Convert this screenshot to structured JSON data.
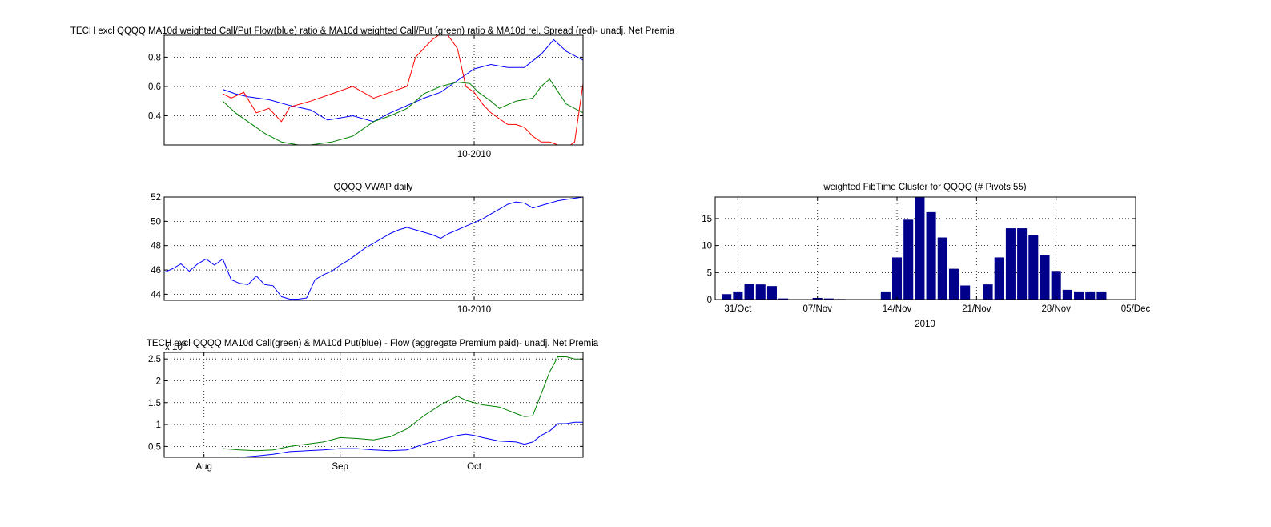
{
  "colors": {
    "blue": "#0000ff",
    "green": "#008000",
    "red": "#ff0000",
    "navy": "#00008b"
  },
  "chart_data": [
    {
      "id": "ratio",
      "type": "line",
      "title": "TECH excl QQQQ MA10d weighted Call/Put Flow(blue) ratio & MA10d weighted Call/Put (green) ratio & MA10d rel. Spread (red)- unadj. Net Premia",
      "ylim": [
        0.2,
        0.95
      ],
      "yticks": [
        {
          "v": 0.4,
          "label": "0.4"
        },
        {
          "v": 0.6,
          "label": "0.6"
        },
        {
          "v": 0.8,
          "label": "0.8"
        }
      ],
      "xlim": [
        0,
        100
      ],
      "xticks": [
        {
          "v": 74,
          "label": "10-2010"
        }
      ],
      "series": [
        {
          "key": "blue",
          "x": [
            14,
            17,
            20,
            25,
            30,
            35,
            39,
            45,
            50,
            54,
            58,
            62,
            66,
            70,
            74,
            78,
            82,
            86,
            90,
            93,
            96,
            100
          ],
          "y": [
            0.58,
            0.55,
            0.53,
            0.51,
            0.47,
            0.44,
            0.37,
            0.4,
            0.36,
            0.42,
            0.47,
            0.52,
            0.56,
            0.64,
            0.72,
            0.75,
            0.73,
            0.73,
            0.82,
            0.92,
            0.84,
            0.78
          ]
        },
        {
          "key": "green",
          "x": [
            14,
            17,
            20,
            24,
            28,
            32,
            35,
            40,
            45,
            50,
            54,
            58,
            62,
            66,
            70,
            73,
            75,
            78,
            80,
            84,
            88,
            90,
            92,
            96,
            100
          ],
          "y": [
            0.5,
            0.42,
            0.36,
            0.28,
            0.22,
            0.2,
            0.2,
            0.22,
            0.26,
            0.36,
            0.4,
            0.45,
            0.55,
            0.6,
            0.63,
            0.62,
            0.56,
            0.5,
            0.45,
            0.5,
            0.52,
            0.6,
            0.65,
            0.48,
            0.42
          ]
        },
        {
          "key": "red",
          "x": [
            14,
            16,
            19,
            22,
            25,
            28,
            30,
            35,
            40,
            45,
            50,
            54,
            58,
            60,
            64,
            67,
            70,
            72,
            74,
            76,
            78,
            80,
            82,
            84,
            86,
            88,
            90,
            92,
            94,
            96,
            98,
            100
          ],
          "y": [
            0.55,
            0.52,
            0.56,
            0.42,
            0.45,
            0.36,
            0.46,
            0.5,
            0.55,
            0.6,
            0.52,
            0.56,
            0.6,
            0.8,
            0.92,
            0.98,
            0.86,
            0.6,
            0.56,
            0.48,
            0.42,
            0.38,
            0.34,
            0.34,
            0.32,
            0.26,
            0.22,
            0.22,
            0.2,
            0.18,
            0.22,
            0.62
          ]
        }
      ]
    },
    {
      "id": "vwap",
      "type": "line",
      "title": "QQQQ VWAP daily",
      "ylim": [
        43.5,
        52
      ],
      "yticks": [
        {
          "v": 44,
          "label": "44"
        },
        {
          "v": 46,
          "label": "46"
        },
        {
          "v": 48,
          "label": "48"
        },
        {
          "v": 50,
          "label": "50"
        },
        {
          "v": 52,
          "label": "52"
        }
      ],
      "xlim": [
        0,
        100
      ],
      "xticks": [
        {
          "v": 74,
          "label": "10-2010"
        }
      ],
      "series": [
        {
          "key": "blue",
          "x": [
            0,
            2,
            4,
            6,
            8,
            10,
            12,
            14,
            16,
            18,
            20,
            22,
            24,
            26,
            28,
            30,
            32,
            34,
            36,
            38,
            40,
            42,
            44,
            46,
            48,
            50,
            52,
            54,
            56,
            58,
            60,
            62,
            64,
            66,
            68,
            70,
            72,
            74,
            76,
            78,
            80,
            82,
            84,
            86,
            88,
            90,
            92,
            94,
            96,
            98,
            100
          ],
          "y": [
            45.8,
            46.1,
            46.5,
            45.9,
            46.5,
            46.9,
            46.4,
            46.9,
            45.2,
            44.9,
            44.8,
            45.5,
            44.8,
            44.7,
            43.8,
            43.6,
            43.6,
            43.7,
            45.2,
            45.6,
            45.9,
            46.4,
            46.8,
            47.3,
            47.8,
            48.2,
            48.6,
            49.0,
            49.3,
            49.5,
            49.3,
            49.1,
            48.9,
            48.6,
            49.0,
            49.3,
            49.6,
            49.9,
            50.2,
            50.6,
            51.0,
            51.4,
            51.6,
            51.5,
            51.1,
            51.3,
            51.5,
            51.7,
            51.8,
            51.9,
            52.0
          ]
        }
      ]
    },
    {
      "id": "flow",
      "type": "line",
      "title": "TECH excl QQQQ MA10d Call(green) & MA10d Put(blue) - Flow (aggregate Premium paid)- unadj. Net Premia",
      "exponent_label": "x 10",
      "exponent_power": "6",
      "ylim": [
        0.25,
        2.65
      ],
      "yticks": [
        {
          "v": 0.5,
          "label": "0.5"
        },
        {
          "v": 1,
          "label": "1"
        },
        {
          "v": 1.5,
          "label": "1.5"
        },
        {
          "v": 2,
          "label": "2"
        },
        {
          "v": 2.5,
          "label": "2.5"
        }
      ],
      "xlim": [
        0,
        100
      ],
      "xticks": [
        {
          "v": 9.5,
          "label": "Aug"
        },
        {
          "v": 42,
          "label": "Sep"
        },
        {
          "v": 74,
          "label": "Oct"
        }
      ],
      "series": [
        {
          "key": "green",
          "x": [
            14,
            18,
            22,
            26,
            30,
            34,
            38,
            42,
            46,
            50,
            54,
            58,
            62,
            66,
            70,
            72,
            74,
            76,
            80,
            84,
            86,
            88,
            90,
            92,
            94,
            96,
            98,
            100
          ],
          "y": [
            0.45,
            0.42,
            0.4,
            0.42,
            0.5,
            0.55,
            0.6,
            0.7,
            0.68,
            0.65,
            0.72,
            0.9,
            1.2,
            1.45,
            1.65,
            1.55,
            1.5,
            1.45,
            1.4,
            1.25,
            1.18,
            1.2,
            1.7,
            2.2,
            2.55,
            2.55,
            2.5,
            2.5
          ]
        },
        {
          "key": "blue",
          "x": [
            14,
            18,
            22,
            26,
            30,
            34,
            38,
            42,
            46,
            50,
            54,
            58,
            62,
            66,
            70,
            72,
            74,
            76,
            80,
            84,
            86,
            88,
            90,
            92,
            94,
            96,
            98,
            100
          ],
          "y": [
            0.25,
            0.25,
            0.28,
            0.32,
            0.38,
            0.4,
            0.42,
            0.45,
            0.45,
            0.42,
            0.4,
            0.42,
            0.55,
            0.65,
            0.75,
            0.78,
            0.75,
            0.7,
            0.62,
            0.6,
            0.55,
            0.6,
            0.75,
            0.85,
            1.02,
            1.02,
            1.05,
            1.05
          ]
        }
      ]
    },
    {
      "id": "fib",
      "type": "bar",
      "title": "weighted FibTime Cluster for QQQQ (# Pivots:55)",
      "xlabel": "2010",
      "ylim": [
        0,
        19
      ],
      "yticks": [
        {
          "v": 0,
          "label": "0"
        },
        {
          "v": 5,
          "label": "5"
        },
        {
          "v": 10,
          "label": "10"
        },
        {
          "v": 15,
          "label": "15"
        }
      ],
      "xlim": [
        29,
        66
      ],
      "xticks": [
        {
          "v": 31,
          "label": "31/Oct"
        },
        {
          "v": 38,
          "label": "07/Nov"
        },
        {
          "v": 45,
          "label": "14/Nov"
        },
        {
          "v": 52,
          "label": "21/Nov"
        },
        {
          "v": 59,
          "label": "28/Nov"
        },
        {
          "v": 66,
          "label": "05/Dec"
        }
      ],
      "x": [
        30,
        31,
        32,
        33,
        34,
        35,
        36,
        37,
        38,
        39,
        40,
        41,
        42,
        43,
        44,
        45,
        46,
        47,
        48,
        49,
        50,
        51,
        52,
        53,
        54,
        55,
        56,
        57,
        58,
        59,
        60,
        61,
        62,
        63
      ],
      "values": [
        1,
        1.5,
        2.9,
        2.8,
        2.5,
        0.2,
        0,
        0,
        0.3,
        0.2,
        0.1,
        0,
        0,
        0,
        1.5,
        7.8,
        14.8,
        19,
        16.2,
        11.5,
        5.7,
        2.6,
        0,
        2.8,
        7.8,
        13.2,
        13.2,
        11.9,
        8.2,
        5.3,
        1.8,
        1.5,
        1.5,
        1.5
      ]
    }
  ]
}
